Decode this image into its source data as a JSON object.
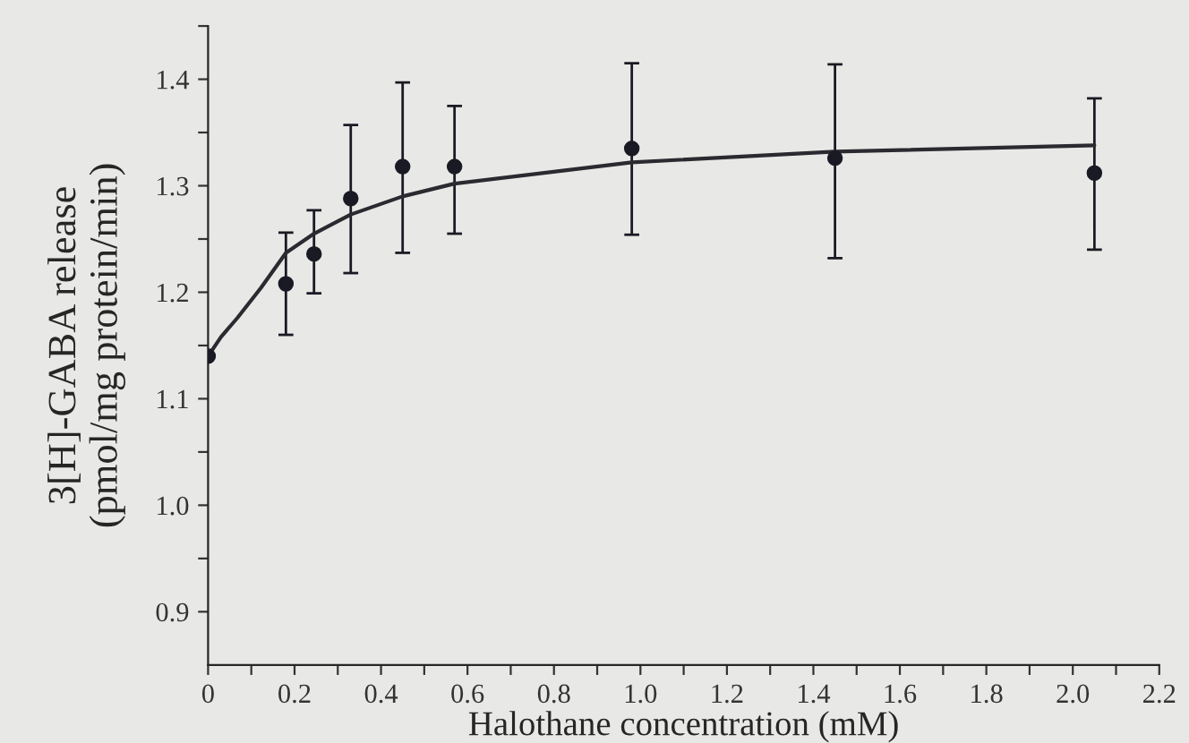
{
  "chart_data": {
    "type": "scatter",
    "xlabel": "Halothane concentration (mM)",
    "ylabel": "3[H]-GABA release\n(pmol/mg protein/min)",
    "series": [
      {
        "color": "#1a1a24",
        "marker": "circle",
        "x": [
          0,
          0.18,
          0.245,
          0.33,
          0.45,
          0.57,
          0.98,
          1.45,
          2.05
        ],
        "values": [
          1.14,
          1.208,
          1.236,
          1.288,
          1.318,
          1.318,
          1.335,
          1.326,
          1.312
        ],
        "errors": [
          null,
          0.048,
          [
            1.199,
            1.277
          ],
          [
            1.218,
            1.357
          ],
          [
            1.237,
            1.397
          ],
          [
            1.255,
            1.375
          ],
          [
            1.254,
            1.415
          ],
          [
            1.232,
            1.414
          ],
          [
            1.24,
            1.382
          ]
        ]
      },
      {
        "type": "line",
        "color": "#2a2a30",
        "line_style": "solid",
        "marker": "none",
        "x": [
          0,
          0.03,
          0.068,
          0.122,
          0.18,
          0.245,
          0.33,
          0.45,
          0.57,
          0.98,
          1.45,
          2.05
        ],
        "values": [
          1.14,
          1.158,
          1.176,
          1.204,
          1.237,
          1.255,
          1.273,
          1.29,
          1.302,
          1.322,
          1.332,
          1.338
        ]
      }
    ],
    "xlim": [
      0,
      2.2
    ],
    "ylim": [
      0.85,
      1.45
    ],
    "xticks": [
      0,
      {
        "value": 0.1,
        "label": null
      },
      0.2,
      {
        "value": 0.3,
        "label": null
      },
      0.4,
      {
        "value": 0.5,
        "label": null
      },
      0.6,
      {
        "value": 0.7,
        "label": null
      },
      0.8,
      {
        "value": 0.9,
        "label": null
      },
      {
        "value": 1,
        "label": "1.0"
      },
      {
        "value": 1.1,
        "label": null
      },
      1.2,
      {
        "value": 1.3,
        "label": null
      },
      1.4,
      {
        "value": 1.5,
        "label": null
      },
      1.6,
      {
        "value": 1.7,
        "label": null
      },
      1.8,
      {
        "value": 1.9,
        "label": null
      },
      {
        "value": 2,
        "label": "2.0"
      },
      {
        "value": 2.1,
        "label": null
      },
      2.2
    ],
    "yticks": [
      0.9,
      {
        "value": 0.95,
        "label": null
      },
      {
        "value": 1,
        "label": "1.0"
      },
      {
        "value": 1.05,
        "label": null
      },
      1.1,
      {
        "value": 1.15,
        "label": null
      },
      1.2,
      {
        "value": 1.25,
        "label": null
      },
      1.3,
      {
        "value": 1.35,
        "label": null
      },
      1.4,
      {
        "value": 1.45,
        "label": null
      }
    ],
    "grid": false,
    "legend": false
  }
}
